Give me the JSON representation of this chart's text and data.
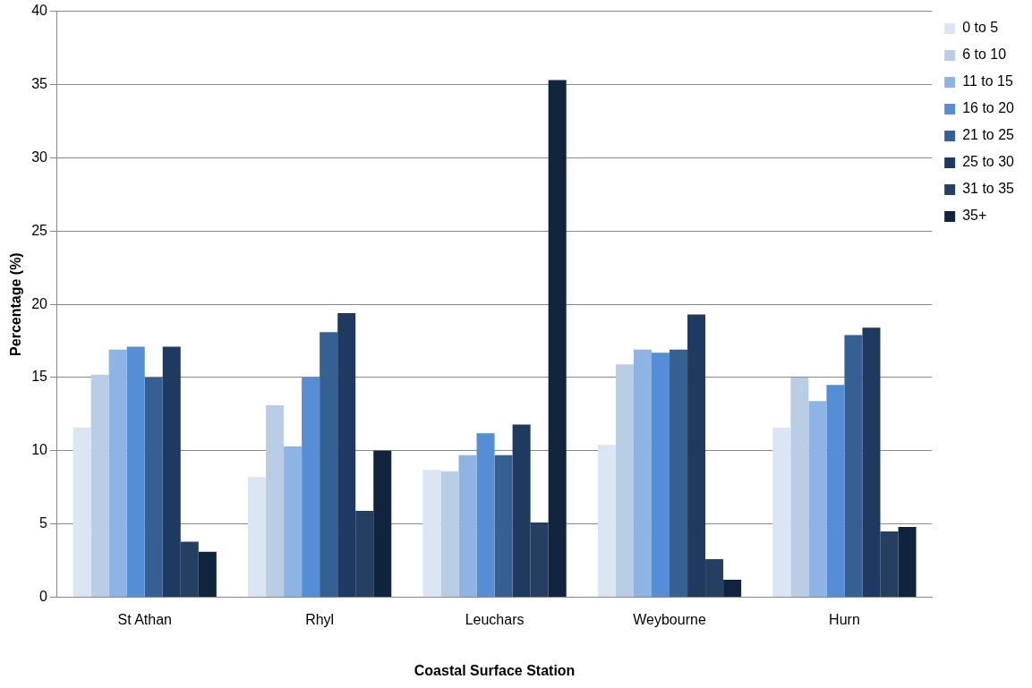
{
  "chart_data": {
    "type": "bar",
    "xlabel": "Coastal Surface Station",
    "ylabel": "Percentage (%)",
    "categories": [
      "St Athan",
      "Rhyl",
      "Leuchars",
      "Weybourne",
      "Hurn"
    ],
    "series": [
      {
        "name": "0 to 5",
        "color": "#dce6f2",
        "values": [
          11.6,
          8.2,
          8.7,
          10.4,
          11.6
        ]
      },
      {
        "name": "6 to 10",
        "color": "#b9cde5",
        "values": [
          15.2,
          13.1,
          8.6,
          15.9,
          15.0
        ]
      },
      {
        "name": "11 to 15",
        "color": "#8eb4e3",
        "values": [
          16.9,
          10.3,
          9.7,
          16.9,
          13.4
        ]
      },
      {
        "name": "16 to 20",
        "color": "#558ed5",
        "values": [
          17.1,
          15.0,
          11.2,
          16.7,
          14.5
        ]
      },
      {
        "name": "21 to 25",
        "color": "#366092",
        "values": [
          15.0,
          18.1,
          9.7,
          16.9,
          17.9
        ]
      },
      {
        "name": "25 to 30",
        "color": "#1f3a60",
        "values": [
          17.1,
          19.4,
          11.8,
          19.3,
          18.4
        ]
      },
      {
        "name": "31 to 35",
        "color": "#243f60",
        "values": [
          3.8,
          5.9,
          5.1,
          2.6,
          4.5
        ]
      },
      {
        "name": "35+",
        "color": "#10243e",
        "values": [
          3.1,
          10.0,
          35.3,
          1.2,
          4.8
        ]
      }
    ],
    "ylim": [
      0,
      40
    ],
    "yticks": [
      0,
      5,
      10,
      15,
      20,
      25,
      30,
      35,
      40
    ],
    "grid": "y",
    "legend": "top right"
  }
}
